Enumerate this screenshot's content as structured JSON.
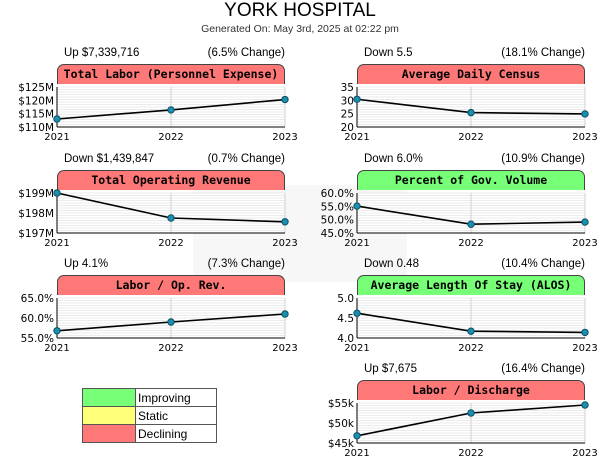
{
  "header": {
    "title": "YORK HOSPITAL",
    "subtitle": "Generated On: May 3rd, 2025 at 02:22 pm"
  },
  "legend": [
    {
      "label": "Improving",
      "color": "#78ff78"
    },
    {
      "label": "Static",
      "color": "#ffff78"
    },
    {
      "label": "Declining",
      "color": "#ff7878"
    }
  ],
  "panels": [
    {
      "stat": "Up $7,339,716",
      "change": "(6.5% Change)",
      "title": "Total Labor (Personnel Expense)",
      "status_color": "#ff7878",
      "y_ticks": [
        "$125M",
        "$120M",
        "$115M",
        "$110M"
      ]
    },
    {
      "stat": "Down 5.5",
      "change": "(18.1% Change)",
      "title": "Average Daily Census",
      "status_color": "#ff7878",
      "y_ticks": [
        "35",
        "30",
        "25",
        "20"
      ]
    },
    {
      "stat": "Down $1,439,847",
      "change": "(0.7% Change)",
      "title": "Total Operating Revenue",
      "status_color": "#ff7878",
      "y_ticks": [
        "$199M",
        "$198M",
        "$197M"
      ]
    },
    {
      "stat": "Down 6.0%",
      "change": "(10.9% Change)",
      "title": "Percent of Gov. Volume",
      "status_color": "#78ff78",
      "y_ticks": [
        "60.0%",
        "55.0%",
        "50.0%",
        "45.0%"
      ]
    },
    {
      "stat": "Up 4.1%",
      "change": "(7.3% Change)",
      "title": "Labor / Op. Rev.",
      "status_color": "#ff7878",
      "y_ticks": [
        "65.0%",
        "60.0%",
        "55.0%"
      ]
    },
    {
      "stat": "Down 0.48",
      "change": "(10.4% Change)",
      "title": "Average Length Of Stay (ALOS)",
      "status_color": "#78ff78",
      "y_ticks": [
        "5.0",
        "4.5",
        "4.0"
      ]
    },
    {
      "stat": "Up $7,675",
      "change": "(16.4% Change)",
      "title": "Labor / Discharge",
      "status_color": "#ff7878",
      "y_ticks": [
        "$55k",
        "$50k",
        "$45k"
      ]
    }
  ],
  "chart_data": [
    {
      "type": "line",
      "title": "Total Labor (Personnel Expense)",
      "x": [
        "2021",
        "2022",
        "2023"
      ],
      "values": [
        113000000,
        116400000,
        120300000
      ],
      "ylim": [
        110000000,
        125000000
      ],
      "grid": true
    },
    {
      "type": "line",
      "title": "Average Daily Census",
      "x": [
        "2021",
        "2022",
        "2023"
      ],
      "values": [
        30.4,
        25.4,
        24.9
      ],
      "ylim": [
        20,
        35
      ],
      "grid": true
    },
    {
      "type": "line",
      "title": "Total Operating Revenue",
      "x": [
        "2021",
        "2022",
        "2023"
      ],
      "values": [
        199000000,
        197750000,
        197560000
      ],
      "ylim": [
        197000000,
        199000000
      ],
      "grid": true
    },
    {
      "type": "line",
      "title": "Percent of Gov. Volume",
      "x": [
        "2021",
        "2022",
        "2023"
      ],
      "values": [
        55.1,
        48.3,
        49.1
      ],
      "ylim": [
        45,
        60
      ],
      "grid": true
    },
    {
      "type": "line",
      "title": "Labor / Op. Rev.",
      "x": [
        "2021",
        "2022",
        "2023"
      ],
      "values": [
        56.8,
        59.0,
        61.0
      ],
      "ylim": [
        55,
        65
      ],
      "grid": true
    },
    {
      "type": "line",
      "title": "Average Length Of Stay (ALOS)",
      "x": [
        "2021",
        "2022",
        "2023"
      ],
      "values": [
        4.62,
        4.17,
        4.14
      ],
      "ylim": [
        4,
        5
      ],
      "grid": true
    },
    {
      "type": "line",
      "title": "Labor / Discharge",
      "x": [
        "2021",
        "2022",
        "2023"
      ],
      "values": [
        46800,
        52500,
        54500
      ],
      "ylim": [
        45000,
        55000
      ],
      "grid": true
    }
  ]
}
